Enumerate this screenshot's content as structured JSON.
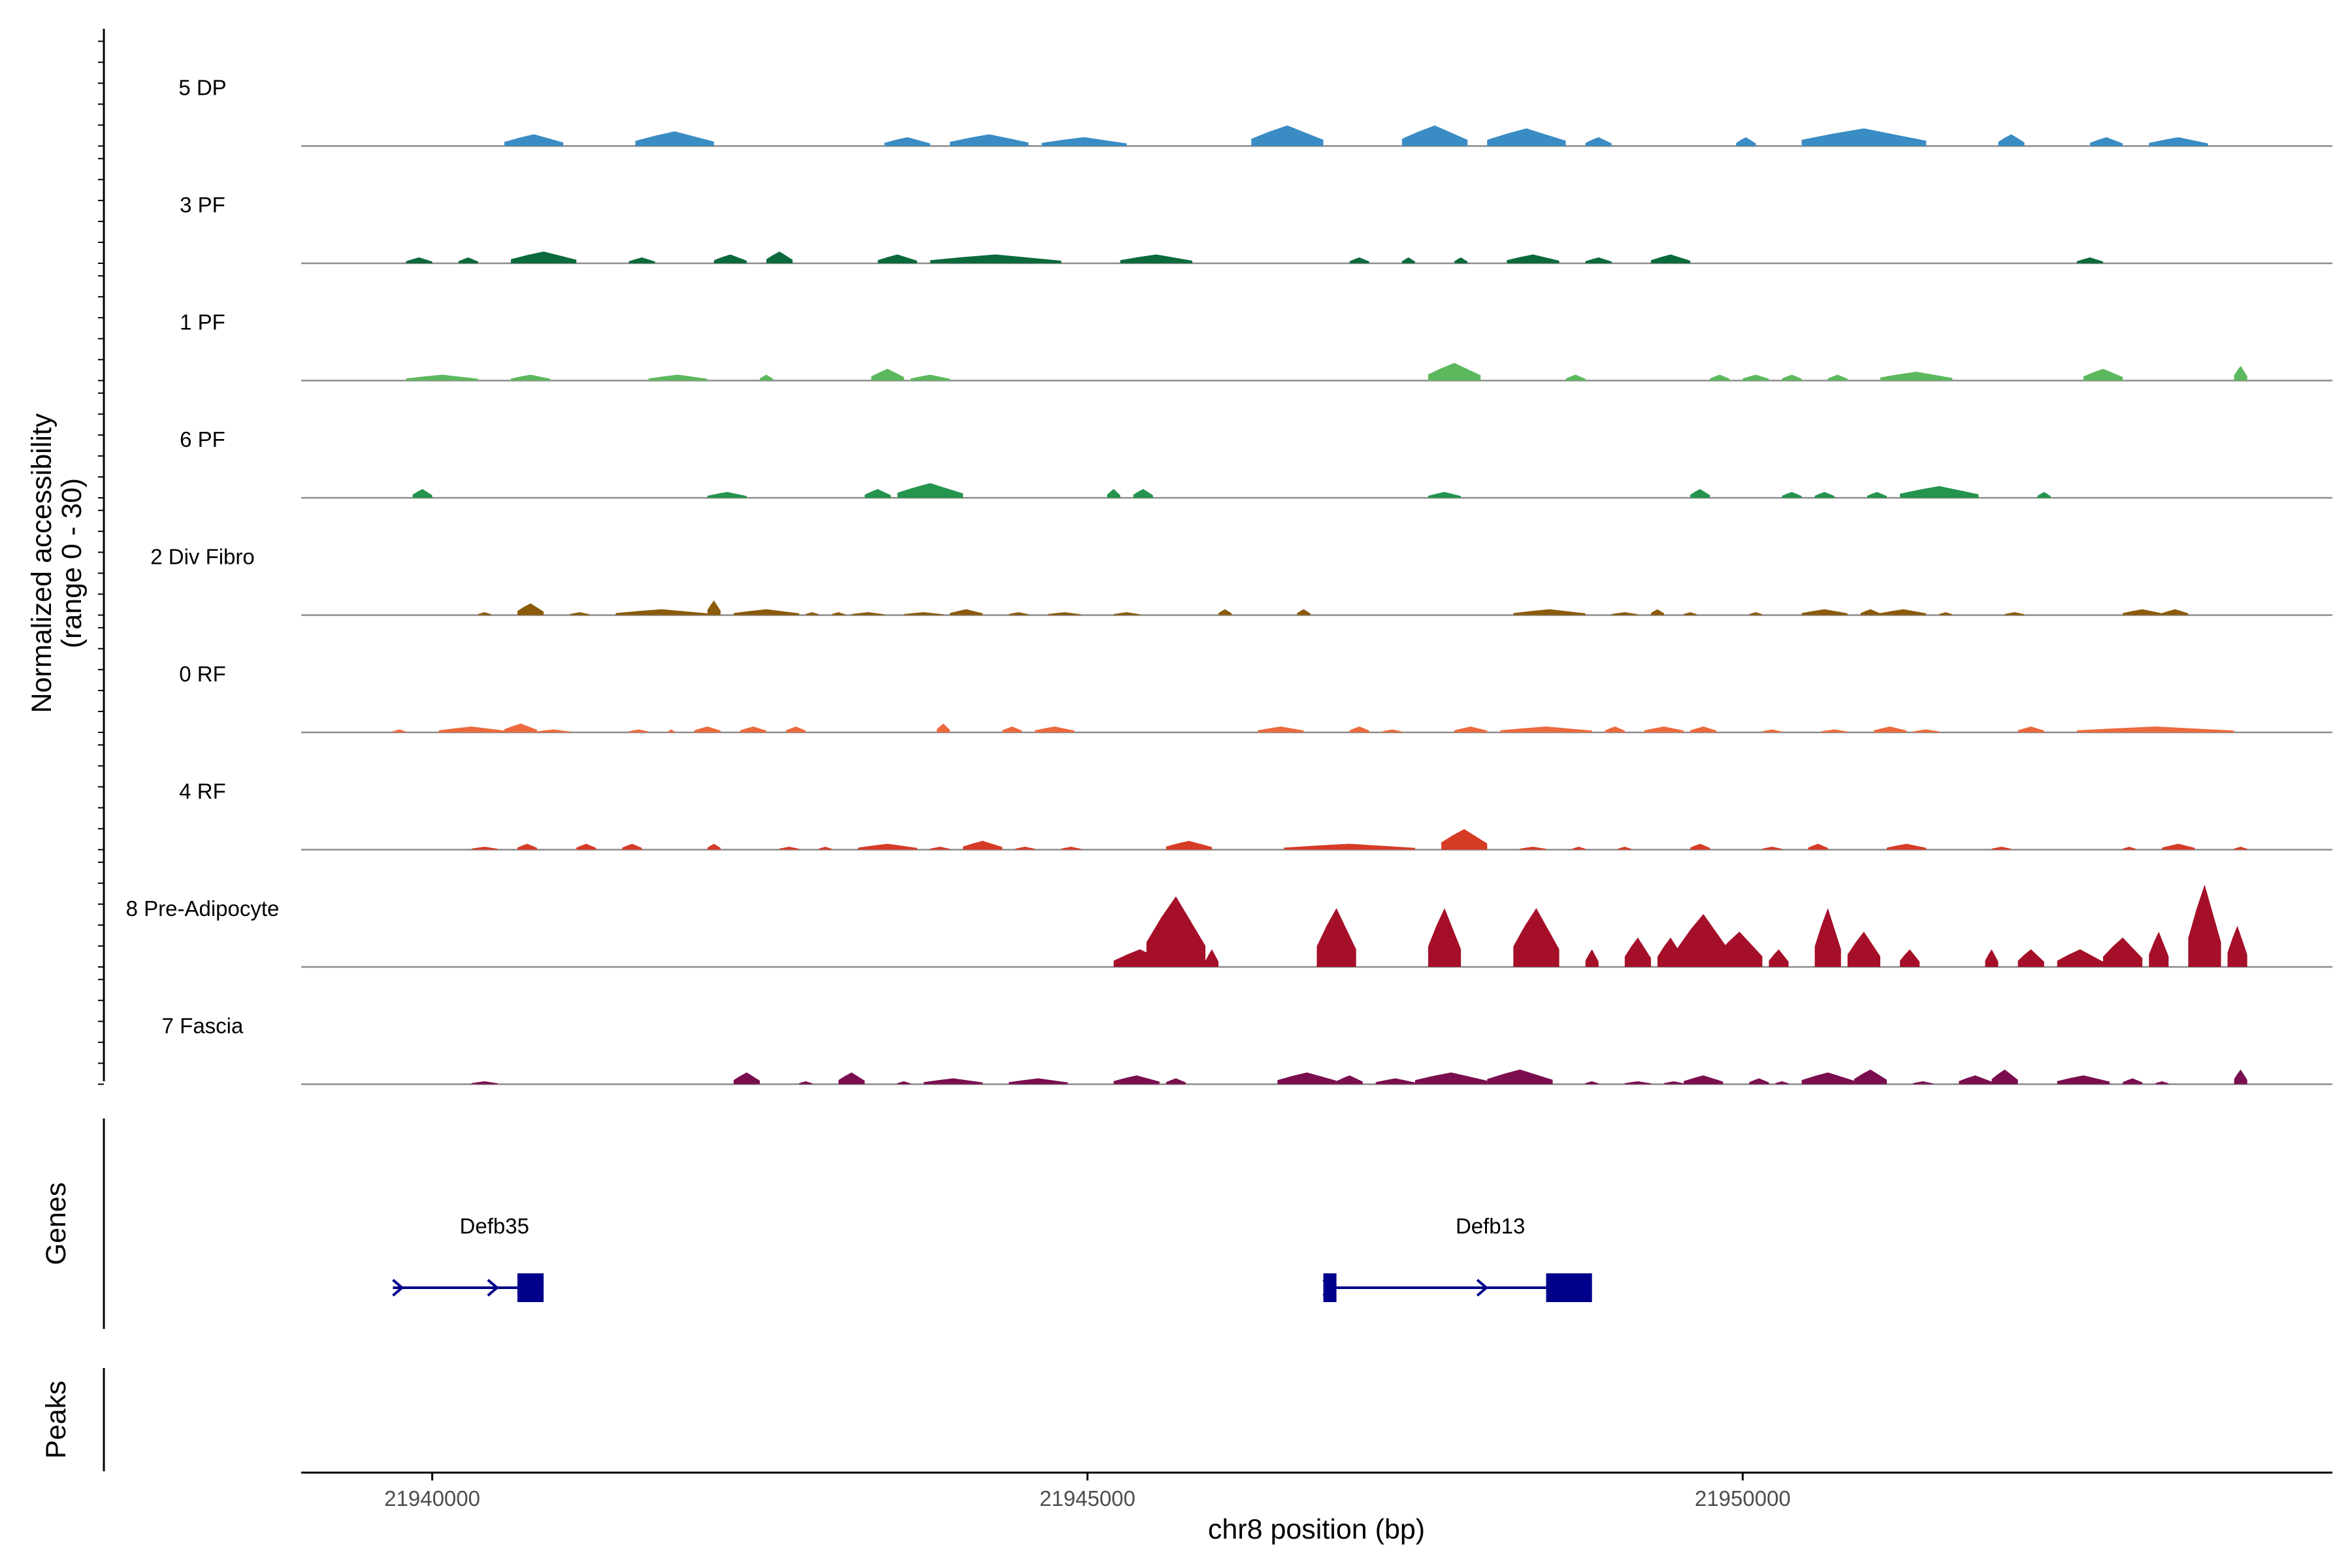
{
  "chart_data": {
    "type": "area",
    "title": "",
    "ylabel": "Normalized accessibility\n(range 0 - 30)",
    "ylabel_line1": "Normalized accessibility",
    "ylabel_line2": "(range 0 - 30)",
    "xlabel": "chr8 position (bp)",
    "xlim": [
      21939000,
      21954500
    ],
    "ylim": [
      0,
      30
    ],
    "xticks": [
      21940000,
      21945000,
      21950000
    ],
    "xtick_labels": [
      "21940000",
      "21945000",
      "21950000"
    ],
    "series": [
      {
        "name": "5 DP",
        "color": "#3a8cc4",
        "peaks": [
          [
            21940550,
            21941000,
            4
          ],
          [
            21941550,
            21942150,
            5
          ],
          [
            21943450,
            21943800,
            3
          ],
          [
            21943950,
            21944550,
            4
          ],
          [
            21944650,
            21945300,
            3
          ],
          [
            21946250,
            21946800,
            7
          ],
          [
            21947400,
            21947900,
            7
          ],
          [
            21948050,
            21948650,
            6
          ],
          [
            21948800,
            21949000,
            3
          ],
          [
            21949950,
            21950100,
            3
          ],
          [
            21950450,
            21951400,
            6
          ],
          [
            21951950,
            21952150,
            4
          ],
          [
            21952650,
            21952900,
            3
          ],
          [
            21953100,
            21953550,
            3
          ]
        ]
      },
      {
        "name": "3 PF",
        "color": "#0b6a3c",
        "peaks": [
          [
            21939800,
            21940000,
            2
          ],
          [
            21940200,
            21940350,
            2
          ],
          [
            21940600,
            21941100,
            4
          ],
          [
            21941500,
            21941700,
            2
          ],
          [
            21942150,
            21942400,
            3
          ],
          [
            21942550,
            21942750,
            4
          ],
          [
            21943400,
            21943700,
            3
          ],
          [
            21943800,
            21944800,
            3
          ],
          [
            21945250,
            21945800,
            3
          ],
          [
            21947000,
            21947150,
            2
          ],
          [
            21947400,
            21947500,
            2
          ],
          [
            21947800,
            21947900,
            2
          ],
          [
            21948200,
            21948600,
            3
          ],
          [
            21948800,
            21949000,
            2
          ],
          [
            21949300,
            21949600,
            3
          ],
          [
            21952550,
            21952750,
            2
          ]
        ]
      },
      {
        "name": "1 PF",
        "color": "#5cb85c",
        "peaks": [
          [
            21939800,
            21940350,
            2
          ],
          [
            21940600,
            21940900,
            2
          ],
          [
            21941650,
            21942100,
            2
          ],
          [
            21942500,
            21942600,
            2
          ],
          [
            21943350,
            21943600,
            4
          ],
          [
            21943650,
            21943950,
            2
          ],
          [
            21947600,
            21948000,
            6
          ],
          [
            21948650,
            21948800,
            2
          ],
          [
            21949750,
            21949900,
            2
          ],
          [
            21950000,
            21950200,
            2
          ],
          [
            21950300,
            21950450,
            2
          ],
          [
            21950650,
            21950800,
            2
          ],
          [
            21951050,
            21951600,
            3
          ],
          [
            21952600,
            21952900,
            4
          ],
          [
            21953750,
            21953850,
            5
          ]
        ]
      },
      {
        "name": "6 PF",
        "color": "#24944e",
        "peaks": [
          [
            21939850,
            21940000,
            3
          ],
          [
            21942100,
            21942400,
            2
          ],
          [
            21943300,
            21943500,
            3
          ],
          [
            21943550,
            21944050,
            5
          ],
          [
            21945150,
            21945250,
            3
          ],
          [
            21945350,
            21945500,
            3
          ],
          [
            21947600,
            21947850,
            2
          ],
          [
            21949600,
            21949750,
            3
          ],
          [
            21950300,
            21950450,
            2
          ],
          [
            21950550,
            21950700,
            2
          ],
          [
            21950950,
            21951100,
            2
          ],
          [
            21951200,
            21951800,
            4
          ],
          [
            21952250,
            21952350,
            2
          ]
        ]
      },
      {
        "name": "2 Div Fibro",
        "color": "#8b5a0b",
        "peaks": [
          [
            21940350,
            21940450,
            1
          ],
          [
            21940650,
            21940850,
            4
          ],
          [
            21941050,
            21941200,
            1
          ],
          [
            21941400,
            21942100,
            2
          ],
          [
            21942100,
            21942200,
            5
          ],
          [
            21942300,
            21942800,
            2
          ],
          [
            21942850,
            21942950,
            1
          ],
          [
            21943050,
            21943150,
            1
          ],
          [
            21943200,
            21943450,
            1
          ],
          [
            21943600,
            21943900,
            1
          ],
          [
            21943950,
            21944200,
            2
          ],
          [
            21944400,
            21944550,
            1
          ],
          [
            21944700,
            21944950,
            1
          ],
          [
            21945200,
            21945400,
            1
          ],
          [
            21946000,
            21946100,
            2
          ],
          [
            21946600,
            21946700,
            2
          ],
          [
            21948250,
            21948800,
            2
          ],
          [
            21949000,
            21949200,
            1
          ],
          [
            21949300,
            21949400,
            2
          ],
          [
            21949550,
            21949650,
            1
          ],
          [
            21950050,
            21950150,
            1
          ],
          [
            21950450,
            21950800,
            2
          ],
          [
            21950900,
            21951050,
            2
          ],
          [
            21951050,
            21951400,
            2
          ],
          [
            21951500,
            21951600,
            1
          ],
          [
            21952000,
            21952150,
            1
          ],
          [
            21952900,
            21953200,
            2
          ],
          [
            21953200,
            21953400,
            2
          ]
        ]
      },
      {
        "name": "0 RF",
        "color": "#ec6a3d",
        "peaks": [
          [
            21939700,
            21939800,
            1
          ],
          [
            21940050,
            21940550,
            2
          ],
          [
            21940550,
            21940800,
            3
          ],
          [
            21940800,
            21941050,
            1
          ],
          [
            21941500,
            21941650,
            1
          ],
          [
            21941800,
            21941850,
            1
          ],
          [
            21942000,
            21942200,
            2
          ],
          [
            21942350,
            21942550,
            2
          ],
          [
            21942700,
            21942850,
            2
          ],
          [
            21943850,
            21943950,
            3
          ],
          [
            21944350,
            21944500,
            2
          ],
          [
            21944600,
            21944900,
            2
          ],
          [
            21946300,
            21946650,
            2
          ],
          [
            21947000,
            21947150,
            2
          ],
          [
            21947250,
            21947400,
            1
          ],
          [
            21947800,
            21948050,
            2
          ],
          [
            21948150,
            21948850,
            2
          ],
          [
            21948950,
            21949100,
            2
          ],
          [
            21949250,
            21949550,
            2
          ],
          [
            21949600,
            21949800,
            2
          ],
          [
            21950150,
            21950300,
            1
          ],
          [
            21950600,
            21950800,
            1
          ],
          [
            21951000,
            21951250,
            2
          ],
          [
            21951300,
            21951500,
            1
          ],
          [
            21952100,
            21952300,
            2
          ],
          [
            21952550,
            21953750,
            2
          ]
        ]
      },
      {
        "name": "4 RF",
        "color": "#d63b26",
        "peaks": [
          [
            21940300,
            21940500,
            1
          ],
          [
            21940650,
            21940800,
            2
          ],
          [
            21941100,
            21941250,
            2
          ],
          [
            21941450,
            21941600,
            2
          ],
          [
            21942100,
            21942200,
            2
          ],
          [
            21942650,
            21942800,
            1
          ],
          [
            21942950,
            21943050,
            1
          ],
          [
            21943250,
            21943700,
            2
          ],
          [
            21943800,
            21943950,
            1
          ],
          [
            21944050,
            21944350,
            3
          ],
          [
            21944450,
            21944600,
            1
          ],
          [
            21944800,
            21944950,
            1
          ],
          [
            21945600,
            21945950,
            3
          ],
          [
            21946500,
            21947500,
            2
          ],
          [
            21947700,
            21948050,
            7
          ],
          [
            21948300,
            21948500,
            1
          ],
          [
            21948700,
            21948800,
            1
          ],
          [
            21949050,
            21949150,
            1
          ],
          [
            21949600,
            21949750,
            2
          ],
          [
            21950150,
            21950300,
            1
          ],
          [
            21950500,
            21950650,
            2
          ],
          [
            21951100,
            21951400,
            2
          ],
          [
            21951900,
            21952050,
            1
          ],
          [
            21952900,
            21953000,
            1
          ],
          [
            21953200,
            21953450,
            2
          ],
          [
            21953750,
            21953850,
            1
          ]
        ]
      },
      {
        "name": "8 Pre-Adipocyte",
        "color": "#a50f29",
        "peaks": [
          [
            21945200,
            21945600,
            6
          ],
          [
            21945450,
            21945900,
            24
          ],
          [
            21945900,
            21946000,
            6
          ],
          [
            21946750,
            21947050,
            20
          ],
          [
            21947600,
            21947850,
            20
          ],
          [
            21948250,
            21948600,
            20
          ],
          [
            21948800,
            21948900,
            6
          ],
          [
            21949100,
            21949300,
            10
          ],
          [
            21949350,
            21949550,
            10
          ],
          [
            21949500,
            21949900,
            18
          ],
          [
            21949800,
            21950150,
            12
          ],
          [
            21950200,
            21950350,
            6
          ],
          [
            21950550,
            21950750,
            20
          ],
          [
            21950800,
            21951050,
            12
          ],
          [
            21951200,
            21951350,
            6
          ],
          [
            21951850,
            21951950,
            6
          ],
          [
            21952100,
            21952300,
            6
          ],
          [
            21952400,
            21952750,
            6
          ],
          [
            21952750,
            21953050,
            10
          ],
          [
            21953100,
            21953250,
            12
          ],
          [
            21953400,
            21953650,
            28
          ],
          [
            21953700,
            21953850,
            14
          ]
        ]
      },
      {
        "name": "7 Fascia",
        "color": "#7a0e4f",
        "peaks": [
          [
            21940300,
            21940500,
            1
          ],
          [
            21942300,
            21942500,
            4
          ],
          [
            21942800,
            21942900,
            1
          ],
          [
            21943100,
            21943300,
            4
          ],
          [
            21943550,
            21943650,
            1
          ],
          [
            21943750,
            21944200,
            2
          ],
          [
            21944400,
            21944850,
            2
          ],
          [
            21945200,
            21945550,
            3
          ],
          [
            21945600,
            21945750,
            2
          ],
          [
            21946450,
            21946900,
            4
          ],
          [
            21946900,
            21947100,
            3
          ],
          [
            21947200,
            21947500,
            2
          ],
          [
            21947500,
            21948050,
            4
          ],
          [
            21948050,
            21948550,
            5
          ],
          [
            21948800,
            21948900,
            1
          ],
          [
            21949100,
            21949300,
            1
          ],
          [
            21949400,
            21949550,
            1
          ],
          [
            21949550,
            21949850,
            3
          ],
          [
            21950050,
            21950200,
            2
          ],
          [
            21950250,
            21950350,
            1
          ],
          [
            21950450,
            21950850,
            4
          ],
          [
            21950850,
            21951100,
            5
          ],
          [
            21951300,
            21951450,
            1
          ],
          [
            21951650,
            21951900,
            3
          ],
          [
            21951900,
            21952100,
            5
          ],
          [
            21952400,
            21952800,
            3
          ],
          [
            21952900,
            21953050,
            2
          ],
          [
            21953150,
            21953250,
            1
          ],
          [
            21953750,
            21953850,
            5
          ]
        ]
      }
    ],
    "genes": [
      {
        "name": "Defb35",
        "strand": "+",
        "start": 21939700,
        "end": 21940850,
        "label_pos": 21940300,
        "exons": [
          [
            21940650,
            21940850
          ]
        ]
      },
      {
        "name": "Defb13",
        "strand": "+",
        "start": 21946800,
        "end": 21948850,
        "label_pos": 21947900,
        "exons": [
          [
            21946800,
            21946900
          ],
          [
            21948500,
            21948850
          ]
        ]
      }
    ],
    "panel_labels": {
      "genes": "Genes",
      "peaks": "Peaks"
    }
  }
}
